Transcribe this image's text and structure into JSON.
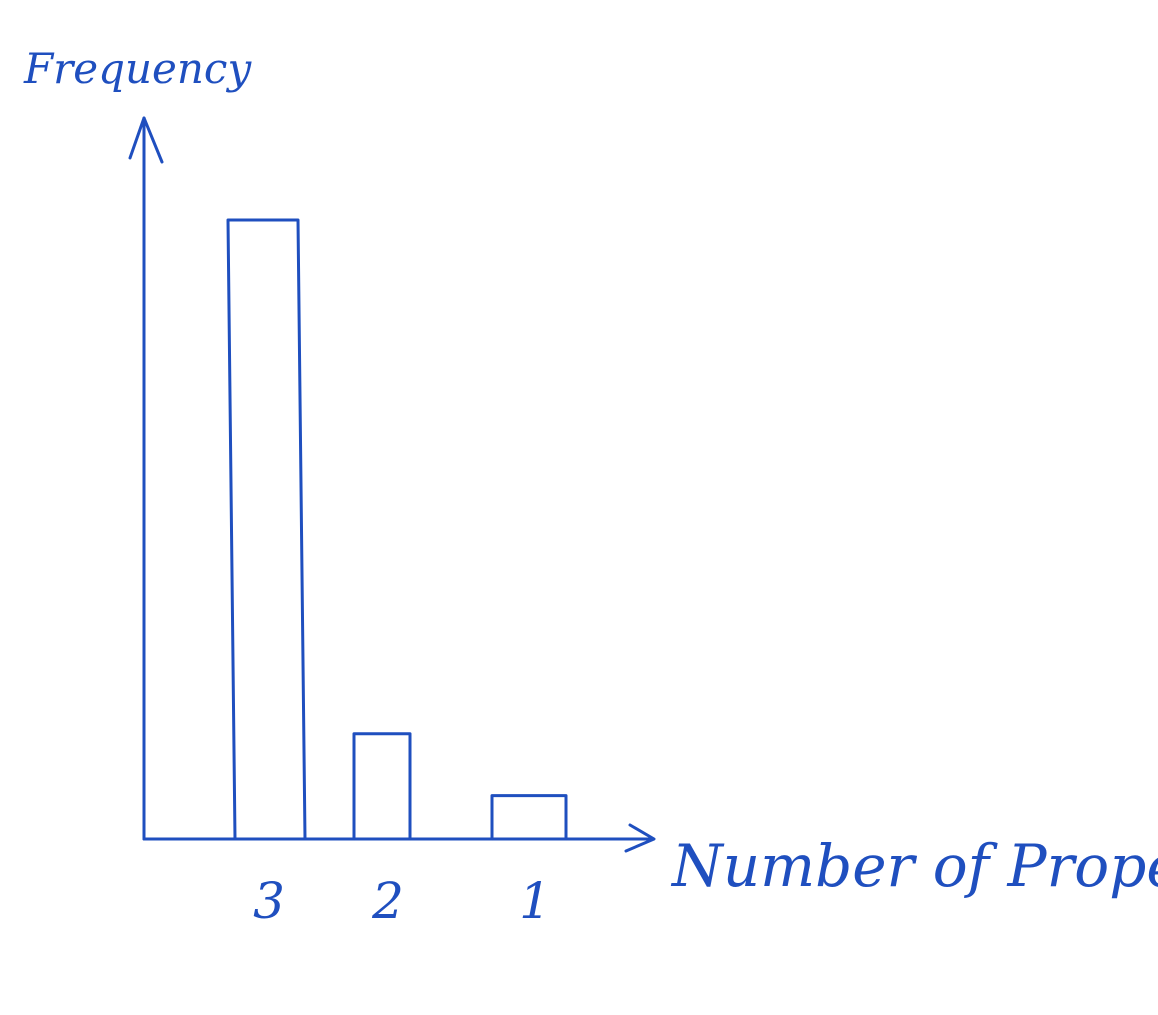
{
  "chart_data": {
    "type": "bar",
    "categories": [
      "3",
      "2",
      "1"
    ],
    "values": [
      100,
      17,
      7
    ],
    "xlabel": "Number of Property",
    "ylabel": "Frequency",
    "ylim": [
      0,
      116
    ],
    "grid": false,
    "legend": "none",
    "colors": {
      "ink": "#1f4fbf"
    }
  }
}
